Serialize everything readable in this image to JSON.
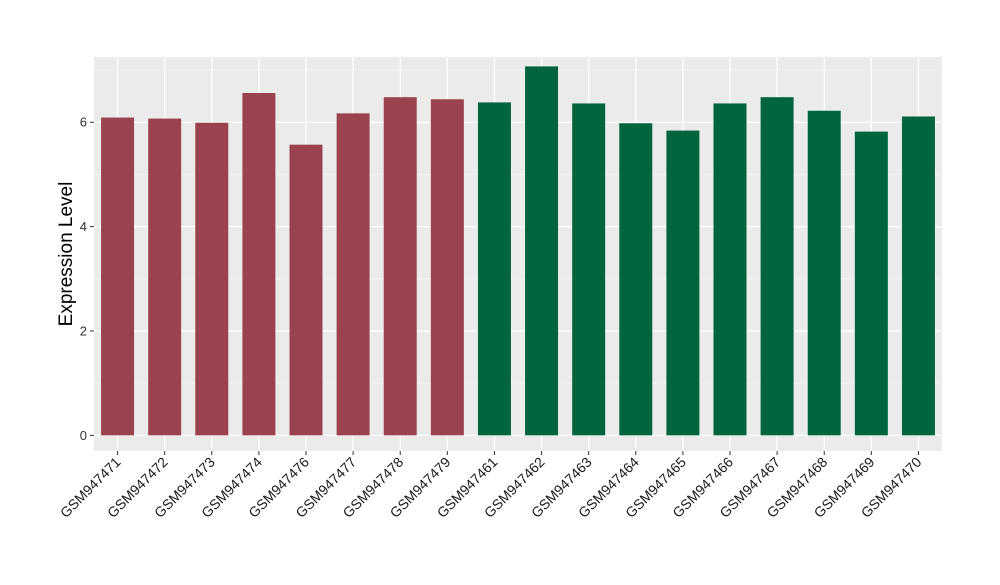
{
  "chart_data": {
    "type": "bar",
    "title": "",
    "xlabel": "",
    "ylabel": "Expression Level",
    "ylim": [
      -0.3,
      7.25
    ],
    "yticks": [
      0,
      2,
      4,
      6
    ],
    "grid": true,
    "legend": "none",
    "categories": [
      "GSM947471",
      "GSM947472",
      "GSM947473",
      "GSM947474",
      "GSM947476",
      "GSM947477",
      "GSM947478",
      "GSM947479",
      "GSM947461",
      "GSM947462",
      "GSM947463",
      "GSM947464",
      "GSM947465",
      "GSM947466",
      "GSM947467",
      "GSM947468",
      "GSM947469",
      "GSM947470"
    ],
    "values": [
      6.09,
      6.07,
      5.99,
      6.56,
      5.57,
      6.17,
      6.48,
      6.44,
      6.38,
      7.07,
      6.36,
      5.98,
      5.84,
      6.36,
      6.48,
      6.22,
      5.82,
      6.11
    ],
    "groups": [
      0,
      0,
      0,
      0,
      0,
      0,
      0,
      0,
      1,
      1,
      1,
      1,
      1,
      1,
      1,
      1,
      1,
      1
    ],
    "colors": {
      "group_colors": [
        "#9b424f",
        "#00653f"
      ],
      "panel_background": "#ebebeb",
      "grid_major": "#ffffff",
      "grid_minor": "#f5f5f5"
    }
  }
}
